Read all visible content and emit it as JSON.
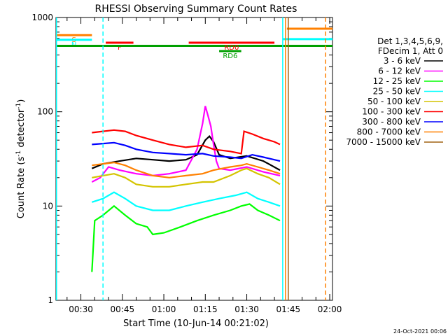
{
  "chart_data": {
    "type": "line",
    "title": "RHESSI Observing Summary Count Rates",
    "xlabel": "Start Time (10-Jun-14 00:21:02)",
    "ylabel_main": "Count Rate (s",
    "ylabel_sup": "-1",
    "ylabel_tail": " detector",
    "ylabel_end": ")",
    "yscale": "log",
    "ylim": [
      1,
      1000
    ],
    "xlim_min": [
      21.0,
      121.0
    ],
    "y_ticks": [
      {
        "v": 1,
        "label": "1"
      },
      {
        "v": 10,
        "label": "10"
      },
      {
        "v": 100,
        "label": "100"
      },
      {
        "v": 1000,
        "label": "1000"
      }
    ],
    "x_ticks": [
      {
        "v": 30,
        "label": "00:30"
      },
      {
        "v": 45,
        "label": "00:45"
      },
      {
        "v": 60,
        "label": "01:00"
      },
      {
        "v": 75,
        "label": "01:15"
      },
      {
        "v": 90,
        "label": "01:30"
      },
      {
        "v": 105,
        "label": "01:45"
      },
      {
        "v": 120,
        "label": "02:00"
      }
    ],
    "legend_header": [
      "Det 1,3,4,5,6,9,",
      "FDecim 1, Att 0"
    ],
    "series": [
      {
        "name": "3 - 6 keV",
        "color": "#000000",
        "values": [
          [
            34,
            25
          ],
          [
            38,
            28
          ],
          [
            44,
            30
          ],
          [
            50,
            32
          ],
          [
            56,
            31
          ],
          [
            62,
            30
          ],
          [
            68,
            31
          ],
          [
            72,
            35
          ],
          [
            75,
            50
          ],
          [
            76.5,
            55
          ],
          [
            78,
            48
          ],
          [
            80,
            35
          ],
          [
            84,
            32
          ],
          [
            90,
            34
          ],
          [
            96,
            30
          ],
          [
            102,
            24
          ]
        ]
      },
      {
        "name": "6 - 12 keV",
        "color": "#ff00ff",
        "values": [
          [
            34,
            18
          ],
          [
            37,
            20
          ],
          [
            40,
            26
          ],
          [
            44,
            24
          ],
          [
            50,
            22
          ],
          [
            56,
            21
          ],
          [
            62,
            22
          ],
          [
            68,
            24
          ],
          [
            72,
            40
          ],
          [
            74,
            75
          ],
          [
            75,
            115
          ],
          [
            76,
            90
          ],
          [
            77,
            70
          ],
          [
            78,
            45
          ],
          [
            79,
            30
          ],
          [
            80,
            25
          ],
          [
            84,
            24
          ],
          [
            90,
            26
          ],
          [
            96,
            23
          ],
          [
            102,
            21
          ]
        ]
      },
      {
        "name": "12 - 25 keV",
        "color": "#00ff00",
        "values": [
          [
            34,
            2
          ],
          [
            35,
            7
          ],
          [
            38,
            8
          ],
          [
            42,
            10
          ],
          [
            46,
            8
          ],
          [
            50,
            6.5
          ],
          [
            54,
            6
          ],
          [
            56,
            5
          ],
          [
            60,
            5.2
          ],
          [
            66,
            6
          ],
          [
            72,
            7
          ],
          [
            78,
            8
          ],
          [
            84,
            9
          ],
          [
            88,
            10
          ],
          [
            91,
            10.5
          ],
          [
            94,
            9
          ],
          [
            98,
            8
          ],
          [
            102,
            7
          ]
        ]
      },
      {
        "name": "25 - 50 keV",
        "color": "#00ffff",
        "values": [
          [
            34,
            11
          ],
          [
            38,
            12
          ],
          [
            42,
            14
          ],
          [
            46,
            12
          ],
          [
            50,
            10
          ],
          [
            56,
            9
          ],
          [
            62,
            9
          ],
          [
            68,
            10
          ],
          [
            74,
            11
          ],
          [
            80,
            12
          ],
          [
            86,
            13
          ],
          [
            90,
            14
          ],
          [
            94,
            12
          ],
          [
            98,
            11
          ],
          [
            102,
            10
          ]
        ]
      },
      {
        "name": "50 - 100 keV",
        "color": "#d4c400",
        "values": [
          [
            34,
            20
          ],
          [
            38,
            21
          ],
          [
            42,
            22
          ],
          [
            46,
            20
          ],
          [
            50,
            17
          ],
          [
            56,
            16
          ],
          [
            62,
            16
          ],
          [
            68,
            17
          ],
          [
            74,
            18
          ],
          [
            78,
            18
          ],
          [
            84,
            21
          ],
          [
            88,
            24
          ],
          [
            90,
            25
          ],
          [
            94,
            22
          ],
          [
            98,
            20
          ],
          [
            102,
            17
          ]
        ]
      },
      {
        "name": "100 - 300 keV",
        "color": "#ff0000",
        "values": [
          [
            34,
            60
          ],
          [
            38,
            62
          ],
          [
            42,
            64
          ],
          [
            46,
            62
          ],
          [
            50,
            56
          ],
          [
            56,
            50
          ],
          [
            62,
            45
          ],
          [
            68,
            42
          ],
          [
            74,
            44
          ],
          [
            78,
            40
          ],
          [
            84,
            38
          ],
          [
            88,
            36
          ],
          [
            89,
            62
          ],
          [
            92,
            58
          ],
          [
            96,
            52
          ],
          [
            100,
            48
          ],
          [
            102,
            45
          ]
        ]
      },
      {
        "name": "300 - 800 keV",
        "color": "#0000ff",
        "values": [
          [
            34,
            45
          ],
          [
            38,
            46
          ],
          [
            42,
            47
          ],
          [
            46,
            44
          ],
          [
            50,
            40
          ],
          [
            56,
            37
          ],
          [
            62,
            36
          ],
          [
            68,
            35
          ],
          [
            74,
            36
          ],
          [
            78,
            34
          ],
          [
            84,
            33
          ],
          [
            88,
            32
          ],
          [
            92,
            35
          ],
          [
            96,
            33
          ],
          [
            102,
            30
          ]
        ]
      },
      {
        "name": "800 - 7000 keV",
        "color": "#ff8000",
        "values": [
          [
            34,
            27
          ],
          [
            38,
            28
          ],
          [
            42,
            29
          ],
          [
            46,
            27
          ],
          [
            50,
            24
          ],
          [
            56,
            21
          ],
          [
            62,
            20
          ],
          [
            68,
            21
          ],
          [
            74,
            22
          ],
          [
            78,
            24
          ],
          [
            84,
            26
          ],
          [
            88,
            27
          ],
          [
            90,
            28
          ],
          [
            94,
            26
          ],
          [
            98,
            24
          ],
          [
            102,
            22
          ]
        ]
      },
      {
        "name": "7000 - 15000 keV",
        "color": "#a06010",
        "values": []
      }
    ],
    "attenuator_bars": [
      {
        "label": "S",
        "color": "#ff8000",
        "x0": 21.0,
        "x1": 34.0,
        "y": 650
      },
      {
        "label": "N",
        "color": "#00ffff",
        "x0": 21.0,
        "x1": 34.0,
        "y": 580
      },
      {
        "label": "F",
        "color": "#ff0000",
        "x0": 39.0,
        "x1": 49.0,
        "y": 540
      },
      {
        "label": "",
        "color": "#00a000",
        "x0": 21.0,
        "x1": 121.0,
        "y": 500
      },
      {
        "label": "RD0",
        "color": "#ff0000",
        "x0": 69.0,
        "x1": 100.0,
        "y": 540
      },
      {
        "label": "RD6",
        "color": "#00a000",
        "x0": 80.0,
        "x1": 88.0,
        "y": 440
      },
      {
        "label": "",
        "color": "#00ffff",
        "x0": 103.0,
        "x1": 121.0,
        "y": 590
      },
      {
        "label": "",
        "color": "#ff8000",
        "x0": 104.5,
        "x1": 121.0,
        "y": 760
      }
    ],
    "vertical_lines": [
      {
        "x": 21.2,
        "color": "#00ffff",
        "style": "solid"
      },
      {
        "x": 38.0,
        "color": "#00ffff",
        "style": "dashed"
      },
      {
        "x": 103.0,
        "color": "#00ffff",
        "style": "solid"
      },
      {
        "x": 104.0,
        "color": "#ff8000",
        "style": "solid"
      },
      {
        "x": 105.0,
        "color": "#a06010",
        "style": "solid"
      },
      {
        "x": 118.5,
        "color": "#ff8000",
        "style": "dashed"
      }
    ],
    "grid": false
  },
  "footer_date": "24-Oct-2021 00:06"
}
